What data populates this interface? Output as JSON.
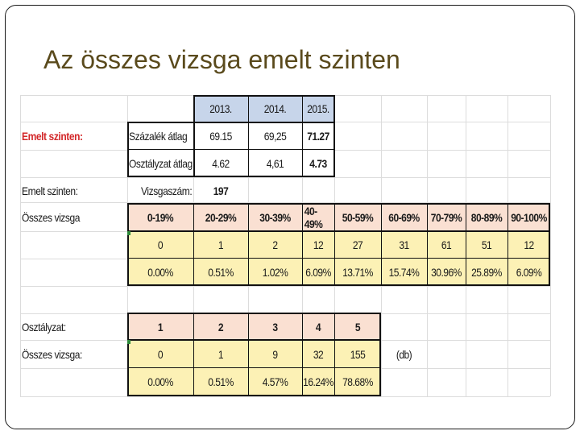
{
  "slide": {
    "title": "Az összes vizsga emelt szinten"
  },
  "colors": {
    "header_blue": "#c7d5ea",
    "salmon": "#fae0d2",
    "yellow": "#fcf1b5",
    "red_label": "#d3282a",
    "title": "#5a4a1c"
  },
  "averages": {
    "red_label": "Emelt szinten:",
    "years": [
      "2013.",
      "2014.",
      "2015."
    ],
    "rows": [
      {
        "label": "Százalék átlag",
        "values": [
          "69.15",
          "69,25",
          "71.27"
        ]
      },
      {
        "label": "Osztályzat átlag",
        "values": [
          "4.62",
          "4,61",
          "4.73"
        ]
      }
    ]
  },
  "exam_count": {
    "label": "Emelt szinten:",
    "key": "Vizsgaszám:",
    "value": "197"
  },
  "ranges": {
    "label": "Összes vizsga",
    "headers": [
      "0-19%",
      "20-29%",
      "30-39%",
      "40-49%",
      "50-59%",
      "60-69%",
      "70-79%",
      "80-89%",
      "90-100%"
    ],
    "counts": [
      "0",
      "1",
      "2",
      "12",
      "27",
      "31",
      "61",
      "51",
      "12"
    ],
    "percents": [
      "0.00%",
      "0.51%",
      "1.02%",
      "6.09%",
      "13.71%",
      "15.74%",
      "30.96%",
      "25.89%",
      "6.09%"
    ]
  },
  "grades": {
    "label": "Osztályzat:",
    "count_label": "Összes vizsga:",
    "headers": [
      "1",
      "2",
      "3",
      "4",
      "5"
    ],
    "counts": [
      "0",
      "1",
      "9",
      "32",
      "155"
    ],
    "percents": [
      "0.00%",
      "0.51%",
      "4.57%",
      "16.24%",
      "78.68%"
    ],
    "unit": "(db)"
  }
}
